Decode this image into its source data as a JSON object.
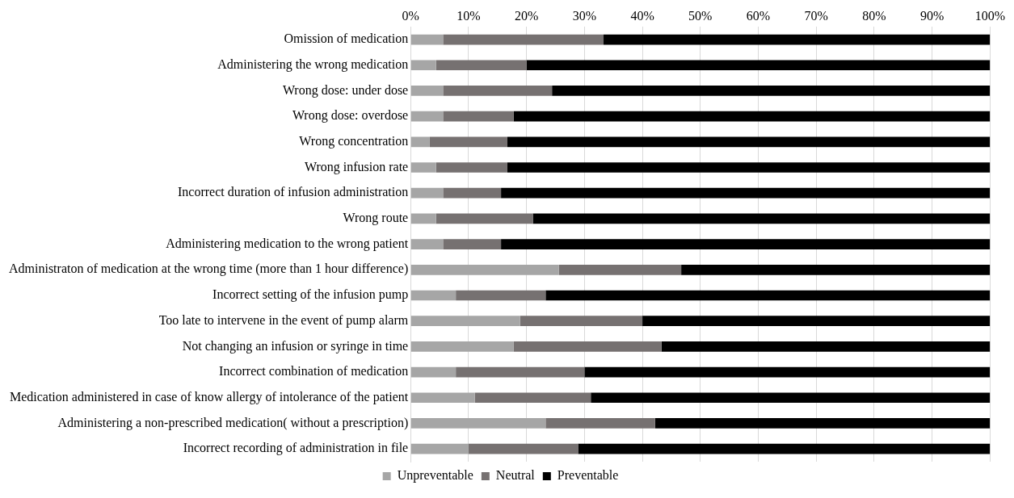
{
  "chart_data": {
    "type": "bar",
    "orientation": "horizontal",
    "stacked": true,
    "categories": [
      "Omission of medication",
      "Administering the wrong medication",
      "Wrong dose: under dose",
      "Wrong dose: overdose",
      "Wrong concentration",
      "Wrong infusion rate",
      "Incorrect duration of infusion administration",
      "Wrong route",
      "Administering medication to the wrong patient",
      "Administraton of medication at the wrong time (more than 1 hour difference)",
      "Incorrect setting of the infusion pump",
      "Too late to intervene in the event of pump alarm",
      "Not changing an infusion or syringe in time",
      "Incorrect combination of medication",
      "Medication administered in case of know allergy of intolerance of the patient",
      "Administering a non-prescribed medication( without a prescription)",
      "Incorrect recording of administration in file"
    ],
    "series": [
      {
        "name": "Unpreventable",
        "color": "#a6a6a6",
        "values": [
          5.6,
          4.4,
          5.6,
          5.6,
          3.3,
          4.4,
          5.6,
          4.4,
          5.6,
          25.6,
          7.8,
          18.9,
          17.8,
          7.8,
          11.1,
          23.3,
          10
        ]
      },
      {
        "name": "Neutral",
        "color": "#767171",
        "values": [
          27.7,
          15.6,
          18.8,
          12.2,
          13.4,
          12.3,
          10,
          16.7,
          10,
          21.1,
          15.5,
          21.1,
          25.5,
          22.2,
          20,
          18.9,
          18.9
        ]
      },
      {
        "name": "Preventable",
        "color": "#000000",
        "values": [
          66.7,
          80,
          75.6,
          82.2,
          83.3,
          83.3,
          84.4,
          78.9,
          84.4,
          53.3,
          76.7,
          60,
          56.7,
          70,
          68.9,
          57.8,
          71.1
        ]
      }
    ],
    "xlim": [
      0,
      100
    ],
    "xticks": [
      {
        "value": 0,
        "label": "0%"
      },
      {
        "value": 10,
        "label": "10%"
      },
      {
        "value": 20,
        "label": "20%"
      },
      {
        "value": 30,
        "label": "30%"
      },
      {
        "value": 40,
        "label": "40%"
      },
      {
        "value": 50,
        "label": "50%"
      },
      {
        "value": 60,
        "label": "60%"
      },
      {
        "value": 70,
        "label": "70%"
      },
      {
        "value": 80,
        "label": "80%"
      },
      {
        "value": 90,
        "label": "90%"
      },
      {
        "value": 100,
        "label": "100%"
      }
    ],
    "grid": "x",
    "legend": "bottom"
  }
}
